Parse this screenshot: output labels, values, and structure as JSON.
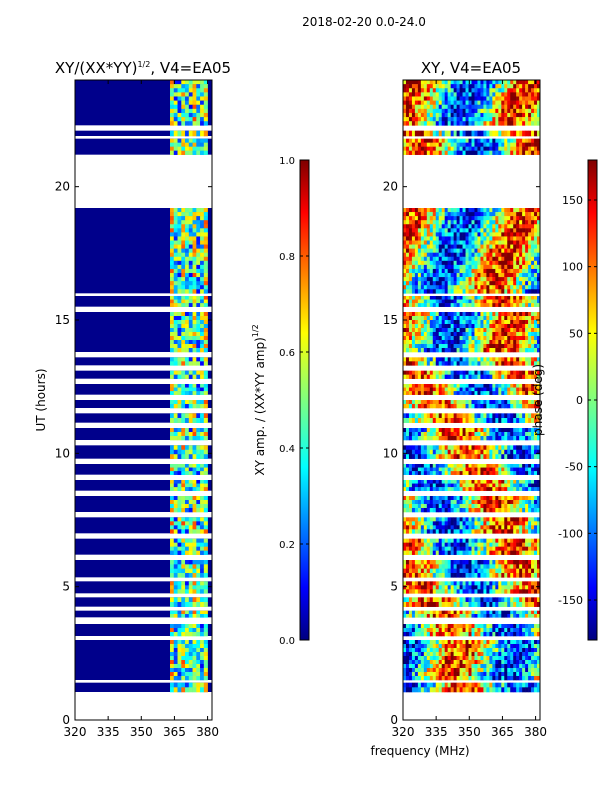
{
  "suptitle": "2018-02-20 0.0-24.0",
  "colors": {
    "deep": "#00008b",
    "bg": "#ffffff",
    "frame": "#000000"
  },
  "chart_data": [
    {
      "type": "heatmap",
      "title_main": "XY/(XX*YY)",
      "title_sup": "1/2",
      "title_rest": ", V4=EA05",
      "xlabel": "",
      "ylabel": "UT (hours)",
      "xlim": [
        320,
        382
      ],
      "ylim": [
        0,
        24
      ],
      "xticks": [
        320,
        335,
        350,
        365,
        380
      ],
      "yticks": [
        0,
        5,
        10,
        15,
        20
      ],
      "data_blocks": [
        [
          1.05,
          1.4
        ],
        [
          1.5,
          3.0
        ],
        [
          3.15,
          3.6
        ],
        [
          3.85,
          4.1
        ],
        [
          4.25,
          4.6
        ],
        [
          4.75,
          5.2
        ],
        [
          5.35,
          6.0
        ],
        [
          6.2,
          6.8
        ],
        [
          7.0,
          7.6
        ],
        [
          7.8,
          8.4
        ],
        [
          8.6,
          9.0
        ],
        [
          9.2,
          9.6
        ],
        [
          9.8,
          10.3
        ],
        [
          10.5,
          10.95
        ],
        [
          11.15,
          11.5
        ],
        [
          11.7,
          12.0
        ],
        [
          12.2,
          12.6
        ],
        [
          12.8,
          13.1
        ],
        [
          13.3,
          13.6
        ],
        [
          13.8,
          15.3
        ],
        [
          15.5,
          15.9
        ],
        [
          16.0,
          19.2
        ],
        [
          21.2,
          21.8
        ],
        [
          21.9,
          22.1
        ],
        [
          22.3,
          24.0
        ]
      ],
      "bright_band_mhz": [
        363,
        380
      ],
      "colorbar": {
        "label_main": "XY amp. / (XX*YY amp)",
        "label_sup": "1/2",
        "range": [
          0.0,
          1.0
        ],
        "ticks": [
          "0.0",
          "0.2",
          "0.4",
          "0.6",
          "0.8",
          "1.0"
        ],
        "colors": [
          "#00007f",
          "#0000ff",
          "#007fff",
          "#00ffff",
          "#7fff7f",
          "#ffff00",
          "#ff7f00",
          "#ff0000",
          "#7f0000"
        ]
      }
    },
    {
      "type": "heatmap",
      "title_main": "XY, V4=EA05",
      "xlabel": "frequency (MHz)",
      "ylabel": "",
      "xlim": [
        320,
        382
      ],
      "ylim": [
        0,
        24
      ],
      "xticks": [
        320,
        335,
        350,
        365,
        380
      ],
      "yticks": [
        0,
        5,
        10,
        15,
        20
      ],
      "data_blocks": [
        [
          1.05,
          1.4
        ],
        [
          1.5,
          3.0
        ],
        [
          3.15,
          3.6
        ],
        [
          3.85,
          4.1
        ],
        [
          4.25,
          4.6
        ],
        [
          4.75,
          5.2
        ],
        [
          5.35,
          6.0
        ],
        [
          6.2,
          6.8
        ],
        [
          7.0,
          7.6
        ],
        [
          7.8,
          8.4
        ],
        [
          8.6,
          9.0
        ],
        [
          9.2,
          9.6
        ],
        [
          9.8,
          10.3
        ],
        [
          10.5,
          10.95
        ],
        [
          11.15,
          11.5
        ],
        [
          11.7,
          12.0
        ],
        [
          12.2,
          12.6
        ],
        [
          12.8,
          13.1
        ],
        [
          13.3,
          13.6
        ],
        [
          13.8,
          15.3
        ],
        [
          15.5,
          15.9
        ],
        [
          16.0,
          19.2
        ],
        [
          21.2,
          21.8
        ],
        [
          21.9,
          22.1
        ],
        [
          22.3,
          24.0
        ]
      ],
      "colorbar": {
        "label_main": "phase (deg)",
        "range": [
          -180,
          180
        ],
        "ticks": [
          "-150",
          "-100",
          "-50",
          "0",
          "50",
          "100",
          "150"
        ],
        "tick_values": [
          -150,
          -100,
          -50,
          0,
          50,
          100,
          150
        ],
        "colors": [
          "#00007f",
          "#0000ff",
          "#007fff",
          "#00ffff",
          "#7fff7f",
          "#ffff00",
          "#ff7f00",
          "#ff0000",
          "#7f0000"
        ]
      }
    }
  ]
}
